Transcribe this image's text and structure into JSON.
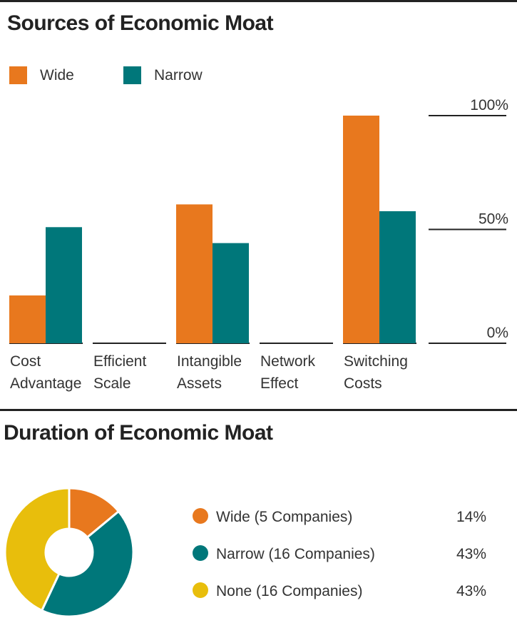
{
  "colors": {
    "wide": "#E8781E",
    "narrow": "#00777A",
    "none": "#E8BE0C",
    "rule": "#222222",
    "text": "#333333"
  },
  "section1": {
    "title": "Sources of Economic Moat"
  },
  "section2": {
    "title": "Duration of Economic Moat"
  },
  "chart_data": [
    {
      "type": "bar",
      "title": "Sources of Economic Moat",
      "categories": [
        "Cost Advantage",
        "Efficient Scale",
        "Intangible Assets",
        "Network Effect",
        "Switching Costs"
      ],
      "category_lines": [
        [
          "Cost",
          "Advantage"
        ],
        [
          "Efficient",
          "Scale"
        ],
        [
          "Intangible",
          "Assets"
        ],
        [
          "Network",
          "Effect"
        ],
        [
          "Switching",
          "Costs"
        ]
      ],
      "series": [
        {
          "name": "Wide",
          "color": "#E8781E",
          "values": [
            21,
            0,
            61,
            0,
            100
          ]
        },
        {
          "name": "Narrow",
          "color": "#00777A",
          "values": [
            51,
            0,
            44,
            0,
            58
          ]
        }
      ],
      "ylim": [
        0,
        100
      ],
      "yticks": [
        {
          "value": 0,
          "label": "0%"
        },
        {
          "value": 50,
          "label": "50%"
        },
        {
          "value": 100,
          "label": "100%"
        }
      ],
      "legend_position": "top-left",
      "grid": false
    },
    {
      "type": "pie",
      "title": "Duration of Economic Moat",
      "donut": true,
      "slices": [
        {
          "label": "Wide (5 Companies)",
          "value": 14,
          "display": "14%",
          "color": "#E8781E"
        },
        {
          "label": "Narrow (16 Companies)",
          "value": 43,
          "display": "43%",
          "color": "#00777A"
        },
        {
          "label": "None (16 Companies)",
          "value": 43,
          "display": "43%",
          "color": "#E8BE0C"
        }
      ],
      "legend_position": "right"
    }
  ]
}
